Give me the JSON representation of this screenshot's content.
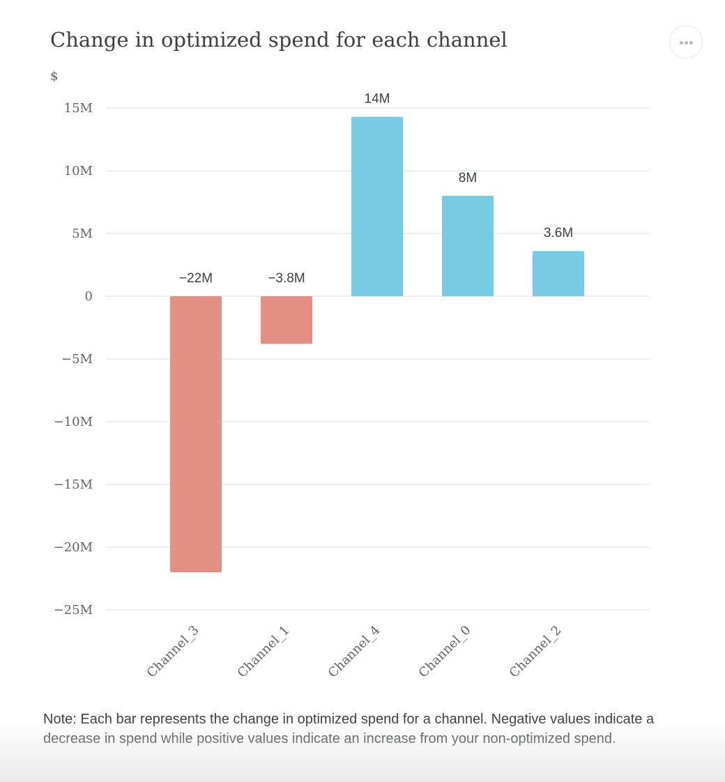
{
  "header": {
    "title": "Change in optimized spend for each channel"
  },
  "menu": {
    "icon": "more-horizontal-icon"
  },
  "colors": {
    "negative": "#e48f84",
    "positive": "#76cae4",
    "gridline": "#dadce0"
  },
  "chart_data": {
    "type": "bar",
    "title": "Change in optimized spend for each channel",
    "ylabel": "$",
    "xlabel": "",
    "categories": [
      "Channel_3",
      "Channel_1",
      "Channel_4",
      "Channel_0",
      "Channel_2"
    ],
    "values": [
      -22000000,
      -3800000,
      14300000,
      8000000,
      3600000
    ],
    "data_labels": [
      "−22M",
      "−3.8M",
      "14M",
      "8M",
      "3.6M"
    ],
    "ylim": [
      -25000000,
      15000000
    ],
    "yticks": [
      15000000,
      10000000,
      5000000,
      0,
      -5000000,
      -10000000,
      -15000000,
      -20000000,
      -25000000
    ],
    "ytick_labels": [
      "15M",
      "10M",
      "5M",
      "0",
      "−5M",
      "−10M",
      "−15M",
      "−20M",
      "−25M"
    ],
    "grid": true,
    "legend": "none"
  },
  "footer": {
    "note": "Note: Each bar represents the change in optimized spend for a channel. Negative values indicate a decrease in spend while positive values indicate an increase from your non-optimized spend."
  }
}
